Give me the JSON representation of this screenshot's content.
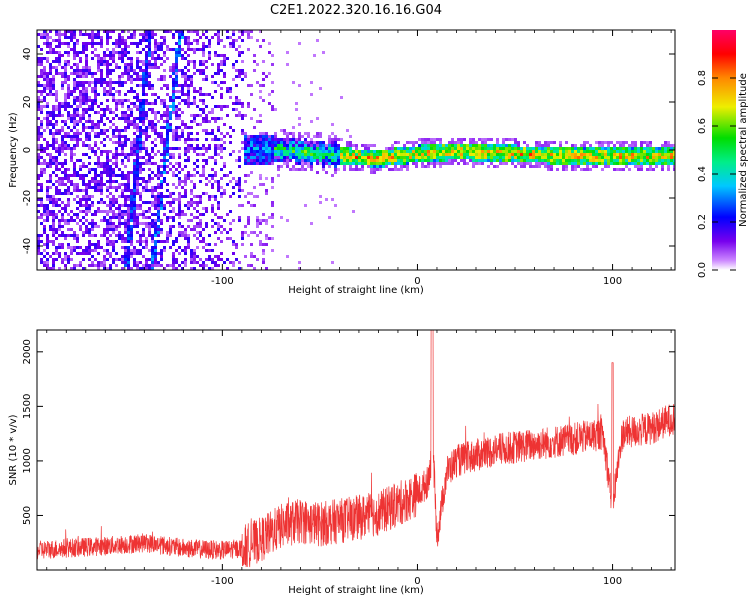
{
  "figure": {
    "title": "C2E1.2022.320.16.16.G04"
  },
  "chart_data": [
    {
      "type": "heatmap",
      "xlabel": "Height of straight line (km)",
      "ylabel": "Frequency (Hz)",
      "xlim": [
        -195,
        132
      ],
      "ylim": [
        -50,
        50
      ],
      "xticks": [
        -100,
        0,
        100
      ],
      "xtick_labels": [
        "-100",
        "0",
        "100"
      ],
      "yticks": [
        -40,
        -20,
        0,
        20,
        40
      ],
      "ytick_labels": [
        "-40",
        "-20",
        "0",
        "20",
        "40"
      ],
      "grid": false,
      "colorbar": {
        "label": "Normalized spectral amplitude",
        "range": [
          0,
          1
        ],
        "ticks": [
          0,
          0.2,
          0.4,
          0.6,
          0.8
        ],
        "tick_labels": [
          "0.0",
          "0.2",
          "0.4",
          "0.6",
          "0.8"
        ],
        "colormap": [
          "#ffffff",
          "#7700ee",
          "#0000ff",
          "#00e5ee",
          "#00dd00",
          "#eeee00",
          "#ff8800",
          "#ff0000",
          "#ff0066"
        ]
      },
      "ridge": {
        "description_values": "dominant frequency line vs height",
        "x": [
          -100,
          -80,
          -60,
          -40,
          -20,
          0,
          20,
          50,
          80,
          110,
          130
        ],
        "y": [
          0,
          1,
          0,
          -2,
          -3,
          -1,
          0,
          -1,
          -2,
          -2,
          -2
        ]
      }
    },
    {
      "type": "line",
      "xlabel": "Height of straight line (km)",
      "ylabel": "SNR (10 * v/v)",
      "xlim": [
        -195,
        132
      ],
      "ylim": [
        0,
        2200
      ],
      "xticks": [
        -100,
        0,
        100
      ],
      "xtick_labels": [
        "-100",
        "0",
        "100"
      ],
      "yticks": [
        500,
        1000,
        1500,
        2000
      ],
      "ytick_labels": [
        "500",
        "1000",
        "1500",
        "2000"
      ],
      "grid": false,
      "series": [
        {
          "color": "#ee3333",
          "x": [
            -195,
            -180,
            -160,
            -140,
            -120,
            -100,
            -90,
            -80,
            -70,
            -60,
            -50,
            -40,
            -30,
            -20,
            -10,
            0,
            5,
            8,
            10,
            15,
            20,
            30,
            40,
            60,
            80,
            95,
            100,
            105,
            120,
            132
          ],
          "y": [
            180,
            200,
            220,
            250,
            200,
            180,
            200,
            280,
            400,
            450,
            420,
            450,
            480,
            520,
            600,
            700,
            800,
            1100,
            300,
            900,
            1000,
            1050,
            1100,
            1150,
            1200,
            1250,
            600,
            1250,
            1300,
            1400
          ]
        }
      ]
    }
  ]
}
